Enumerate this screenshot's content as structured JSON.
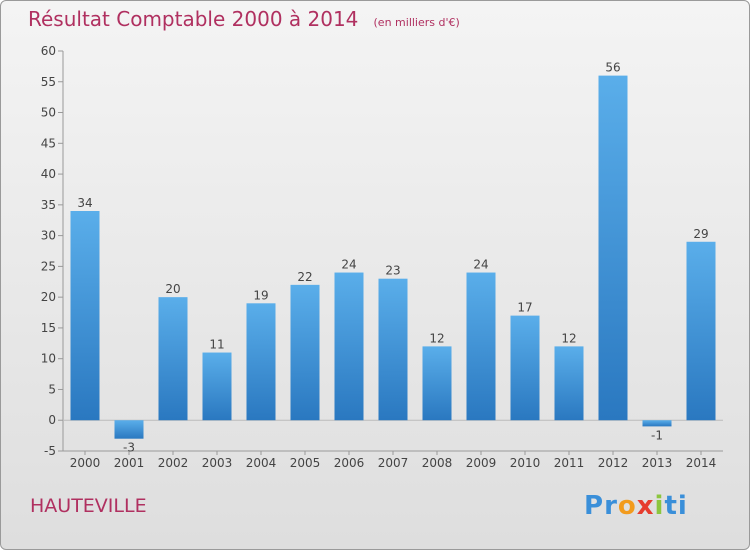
{
  "chart_data": {
    "type": "bar",
    "title": "Résultat Comptable 2000 à 2014",
    "subtitle": "(en milliers d'€)",
    "categories": [
      "2000",
      "2001",
      "2002",
      "2003",
      "2004",
      "2005",
      "2006",
      "2007",
      "2008",
      "2009",
      "2010",
      "2011",
      "2012",
      "2013",
      "2014"
    ],
    "values": [
      34,
      -3,
      20,
      11,
      19,
      22,
      24,
      23,
      12,
      24,
      17,
      12,
      56,
      -1,
      29
    ],
    "ylim": [
      -5,
      60
    ],
    "yticks": [
      -5,
      0,
      5,
      10,
      15,
      20,
      25,
      30,
      35,
      40,
      45,
      50,
      55,
      60
    ],
    "grid": false,
    "bar_color": "#4a9de0"
  },
  "commune": "HAUTEVILLE",
  "logo": {
    "letters": [
      "P",
      "r",
      "o",
      "x",
      "i",
      "t",
      "i"
    ],
    "colors": [
      "#3a8fd9",
      "#3a8fd9",
      "#f29b1d",
      "#e63c2e",
      "#8cc63f",
      "#3a8fd9",
      "#3a8fd9"
    ]
  }
}
